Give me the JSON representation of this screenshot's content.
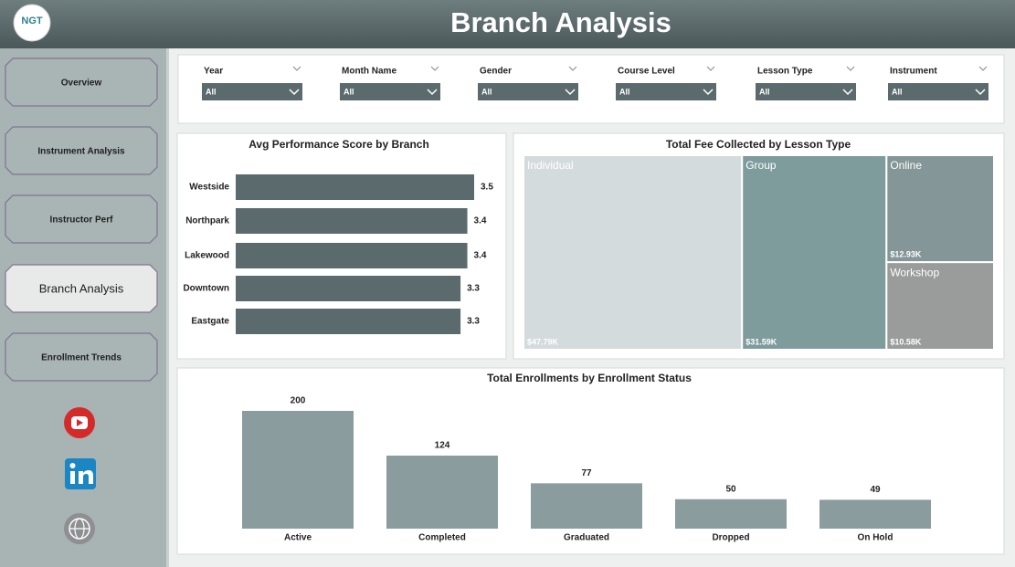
{
  "header": {
    "logo": "NGT",
    "title": "Branch Analysis"
  },
  "nav": [
    "Overview",
    "Instrument Analysis",
    "Instructor Perf",
    "Branch Analysis",
    "Enrollment Trends"
  ],
  "active_nav": 3,
  "filters": [
    {
      "label": "Year",
      "value": "All"
    },
    {
      "label": "Month Name",
      "value": "All"
    },
    {
      "label": "Gender",
      "value": "All"
    },
    {
      "label": "Course Level",
      "value": "All"
    },
    {
      "label": "Lesson Type",
      "value": "All"
    },
    {
      "label": "Instrument",
      "value": "All"
    }
  ],
  "chart_data": [
    {
      "type": "hbar",
      "title": "Avg Performance Score by Branch",
      "categories": [
        "Westside",
        "Northpark",
        "Lakewood",
        "Downtown",
        "Eastgate"
      ],
      "values": [
        3.5,
        3.4,
        3.4,
        3.3,
        3.3
      ],
      "color": "#5b6b6d"
    },
    {
      "type": "treemap",
      "title": "Total Fee Collected by Lesson Type",
      "categories": [
        "Individual",
        "Group",
        "Online",
        "Workshop"
      ],
      "values": [
        47790,
        31590,
        12930,
        10580
      ],
      "value_labels": [
        "$47.79K",
        "$31.59K",
        "$12.93K",
        "$10.58K"
      ],
      "colors": [
        "#d4dbdc",
        "#7f9c9d",
        "#849697",
        "#9a9c9c"
      ]
    },
    {
      "type": "bar",
      "title": "Total Enrollments by Enrollment Status",
      "categories": [
        "Active",
        "Completed",
        "Graduated",
        "Dropped",
        "On Hold"
      ],
      "values": [
        200,
        124,
        77,
        50,
        49
      ],
      "color": "#8a9c9e"
    }
  ]
}
